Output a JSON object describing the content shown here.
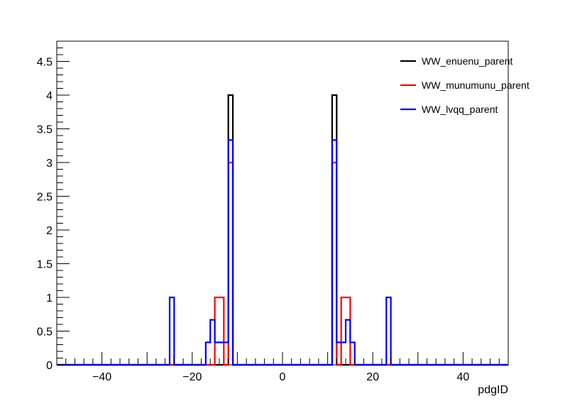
{
  "chart_data": {
    "type": "line",
    "title": "",
    "xlabel": "pdgID",
    "ylabel": "",
    "xlim": [
      -50,
      50
    ],
    "ylim": [
      0,
      4.8
    ],
    "x_ticks": [
      -40,
      -20,
      0,
      20,
      40
    ],
    "y_ticks": [
      0,
      0.5,
      1,
      1.5,
      2,
      2.5,
      3,
      3.5,
      4,
      4.5
    ],
    "x_tick_labels": [
      "−40",
      "−20",
      "0",
      "20",
      "40"
    ],
    "y_tick_labels": [
      "0",
      "0.5",
      "1",
      "1.5",
      "2",
      "2.5",
      "3",
      "3.5",
      "4",
      "4.5"
    ],
    "grid": false,
    "legend_position": "top-right",
    "bin_width": 1,
    "series": [
      {
        "name": "WW_enuenu_parent",
        "color": "#000000",
        "bins": [
          {
            "x": -12,
            "y": 4
          },
          {
            "x": 11,
            "y": 4
          }
        ]
      },
      {
        "name": "WW_munumunu_parent",
        "color": "#ff0000",
        "bins": [
          {
            "x": -15,
            "y": 1
          },
          {
            "x": -14,
            "y": 1
          },
          {
            "x": -12,
            "y": 3
          },
          {
            "x": 11,
            "y": 3
          },
          {
            "x": 13,
            "y": 1
          },
          {
            "x": 14,
            "y": 1
          }
        ]
      },
      {
        "name": "WW_lvqq_parent",
        "color": "#0000ff",
        "bins": [
          {
            "x": -25,
            "y": 1
          },
          {
            "x": -17,
            "y": 0.333
          },
          {
            "x": -16,
            "y": 0.667
          },
          {
            "x": -15,
            "y": 0.333
          },
          {
            "x": -14,
            "y": 0.333
          },
          {
            "x": -13,
            "y": 0.333
          },
          {
            "x": -12,
            "y": 3.333
          },
          {
            "x": 11,
            "y": 3.333
          },
          {
            "x": 12,
            "y": 0.333
          },
          {
            "x": 13,
            "y": 0.333
          },
          {
            "x": 14,
            "y": 0.667
          },
          {
            "x": 15,
            "y": 0.333
          },
          {
            "x": 23,
            "y": 1
          }
        ]
      }
    ]
  }
}
